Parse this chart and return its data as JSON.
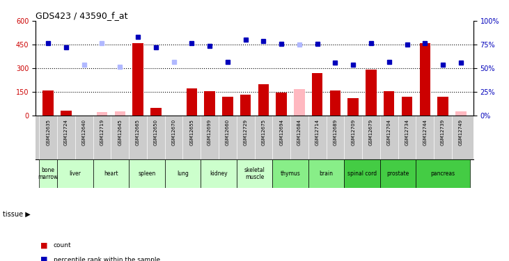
{
  "title": "GDS423 / 43590_f_at",
  "samples": [
    "GSM12635",
    "GSM12724",
    "GSM12640",
    "GSM12719",
    "GSM12645",
    "GSM12665",
    "GSM12650",
    "GSM12670",
    "GSM12655",
    "GSM12699",
    "GSM12660",
    "GSM12729",
    "GSM12675",
    "GSM12694",
    "GSM12684",
    "GSM12714",
    "GSM12689",
    "GSM12709",
    "GSM12679",
    "GSM12704",
    "GSM12734",
    "GSM12744",
    "GSM12739",
    "GSM12749"
  ],
  "tissues": [
    {
      "name": "bone\nmarrow",
      "samples": [
        0
      ],
      "color": "#ccffcc"
    },
    {
      "name": "liver",
      "samples": [
        1,
        2
      ],
      "color": "#ccffcc"
    },
    {
      "name": "heart",
      "samples": [
        3,
        4
      ],
      "color": "#ccffcc"
    },
    {
      "name": "spleen",
      "samples": [
        5,
        6
      ],
      "color": "#ccffcc"
    },
    {
      "name": "lung",
      "samples": [
        7,
        8
      ],
      "color": "#ccffcc"
    },
    {
      "name": "kidney",
      "samples": [
        9,
        10
      ],
      "color": "#ccffcc"
    },
    {
      "name": "skeletal\nmuscle",
      "samples": [
        11,
        12
      ],
      "color": "#ccffcc"
    },
    {
      "name": "thymus",
      "samples": [
        13,
        14
      ],
      "color": "#99ee99"
    },
    {
      "name": "brain",
      "samples": [
        15,
        16
      ],
      "color": "#99ee99"
    },
    {
      "name": "spinal cord",
      "samples": [
        17,
        18
      ],
      "color": "#44dd44"
    },
    {
      "name": "prostate",
      "samples": [
        19,
        20
      ],
      "color": "#44dd44"
    },
    {
      "name": "pancreas",
      "samples": [
        21,
        22,
        23
      ],
      "color": "#44dd44"
    }
  ],
  "bar_values": [
    160,
    30,
    0,
    0,
    0,
    460,
    50,
    0,
    170,
    155,
    120,
    130,
    200,
    145,
    0,
    270,
    160,
    110,
    290,
    155,
    120,
    460,
    120,
    0
  ],
  "bar_absent": [
    false,
    false,
    false,
    true,
    true,
    false,
    false,
    false,
    false,
    false,
    false,
    false,
    false,
    false,
    true,
    false,
    false,
    false,
    false,
    false,
    false,
    false,
    false,
    true
  ],
  "absent_bar_values": [
    0,
    0,
    15,
    20,
    25,
    0,
    0,
    0,
    0,
    0,
    0,
    0,
    0,
    0,
    165,
    0,
    0,
    0,
    0,
    0,
    0,
    0,
    0,
    25
  ],
  "rank_values": [
    460,
    430,
    0,
    0,
    0,
    500,
    430,
    0,
    460,
    440,
    340,
    480,
    470,
    455,
    0,
    455,
    335,
    320,
    460,
    340,
    450,
    460,
    320,
    335
  ],
  "rank_absent": [
    false,
    false,
    true,
    true,
    true,
    false,
    false,
    true,
    false,
    false,
    false,
    false,
    false,
    false,
    true,
    false,
    false,
    false,
    false,
    false,
    false,
    false,
    false,
    false
  ],
  "absent_rank_values": [
    0,
    0,
    320,
    460,
    310,
    0,
    0,
    340,
    0,
    0,
    0,
    0,
    0,
    0,
    450,
    0,
    0,
    0,
    0,
    0,
    0,
    0,
    0,
    0
  ],
  "ylim_left": [
    0,
    600
  ],
  "ylim_right": [
    0,
    100
  ],
  "yticks_left": [
    0,
    150,
    300,
    450,
    600
  ],
  "yticks_right": [
    0,
    25,
    50,
    75,
    100
  ],
  "bar_color": "#cc0000",
  "bar_absent_color": "#ffb8c0",
  "rank_color": "#0000bb",
  "rank_absent_color": "#b0b8ff",
  "plot_bg": "#ffffff",
  "xaxis_bg": "#cccccc",
  "tissue_light": "#ccffcc",
  "tissue_medium": "#88ee88",
  "tissue_dark": "#44cc44"
}
